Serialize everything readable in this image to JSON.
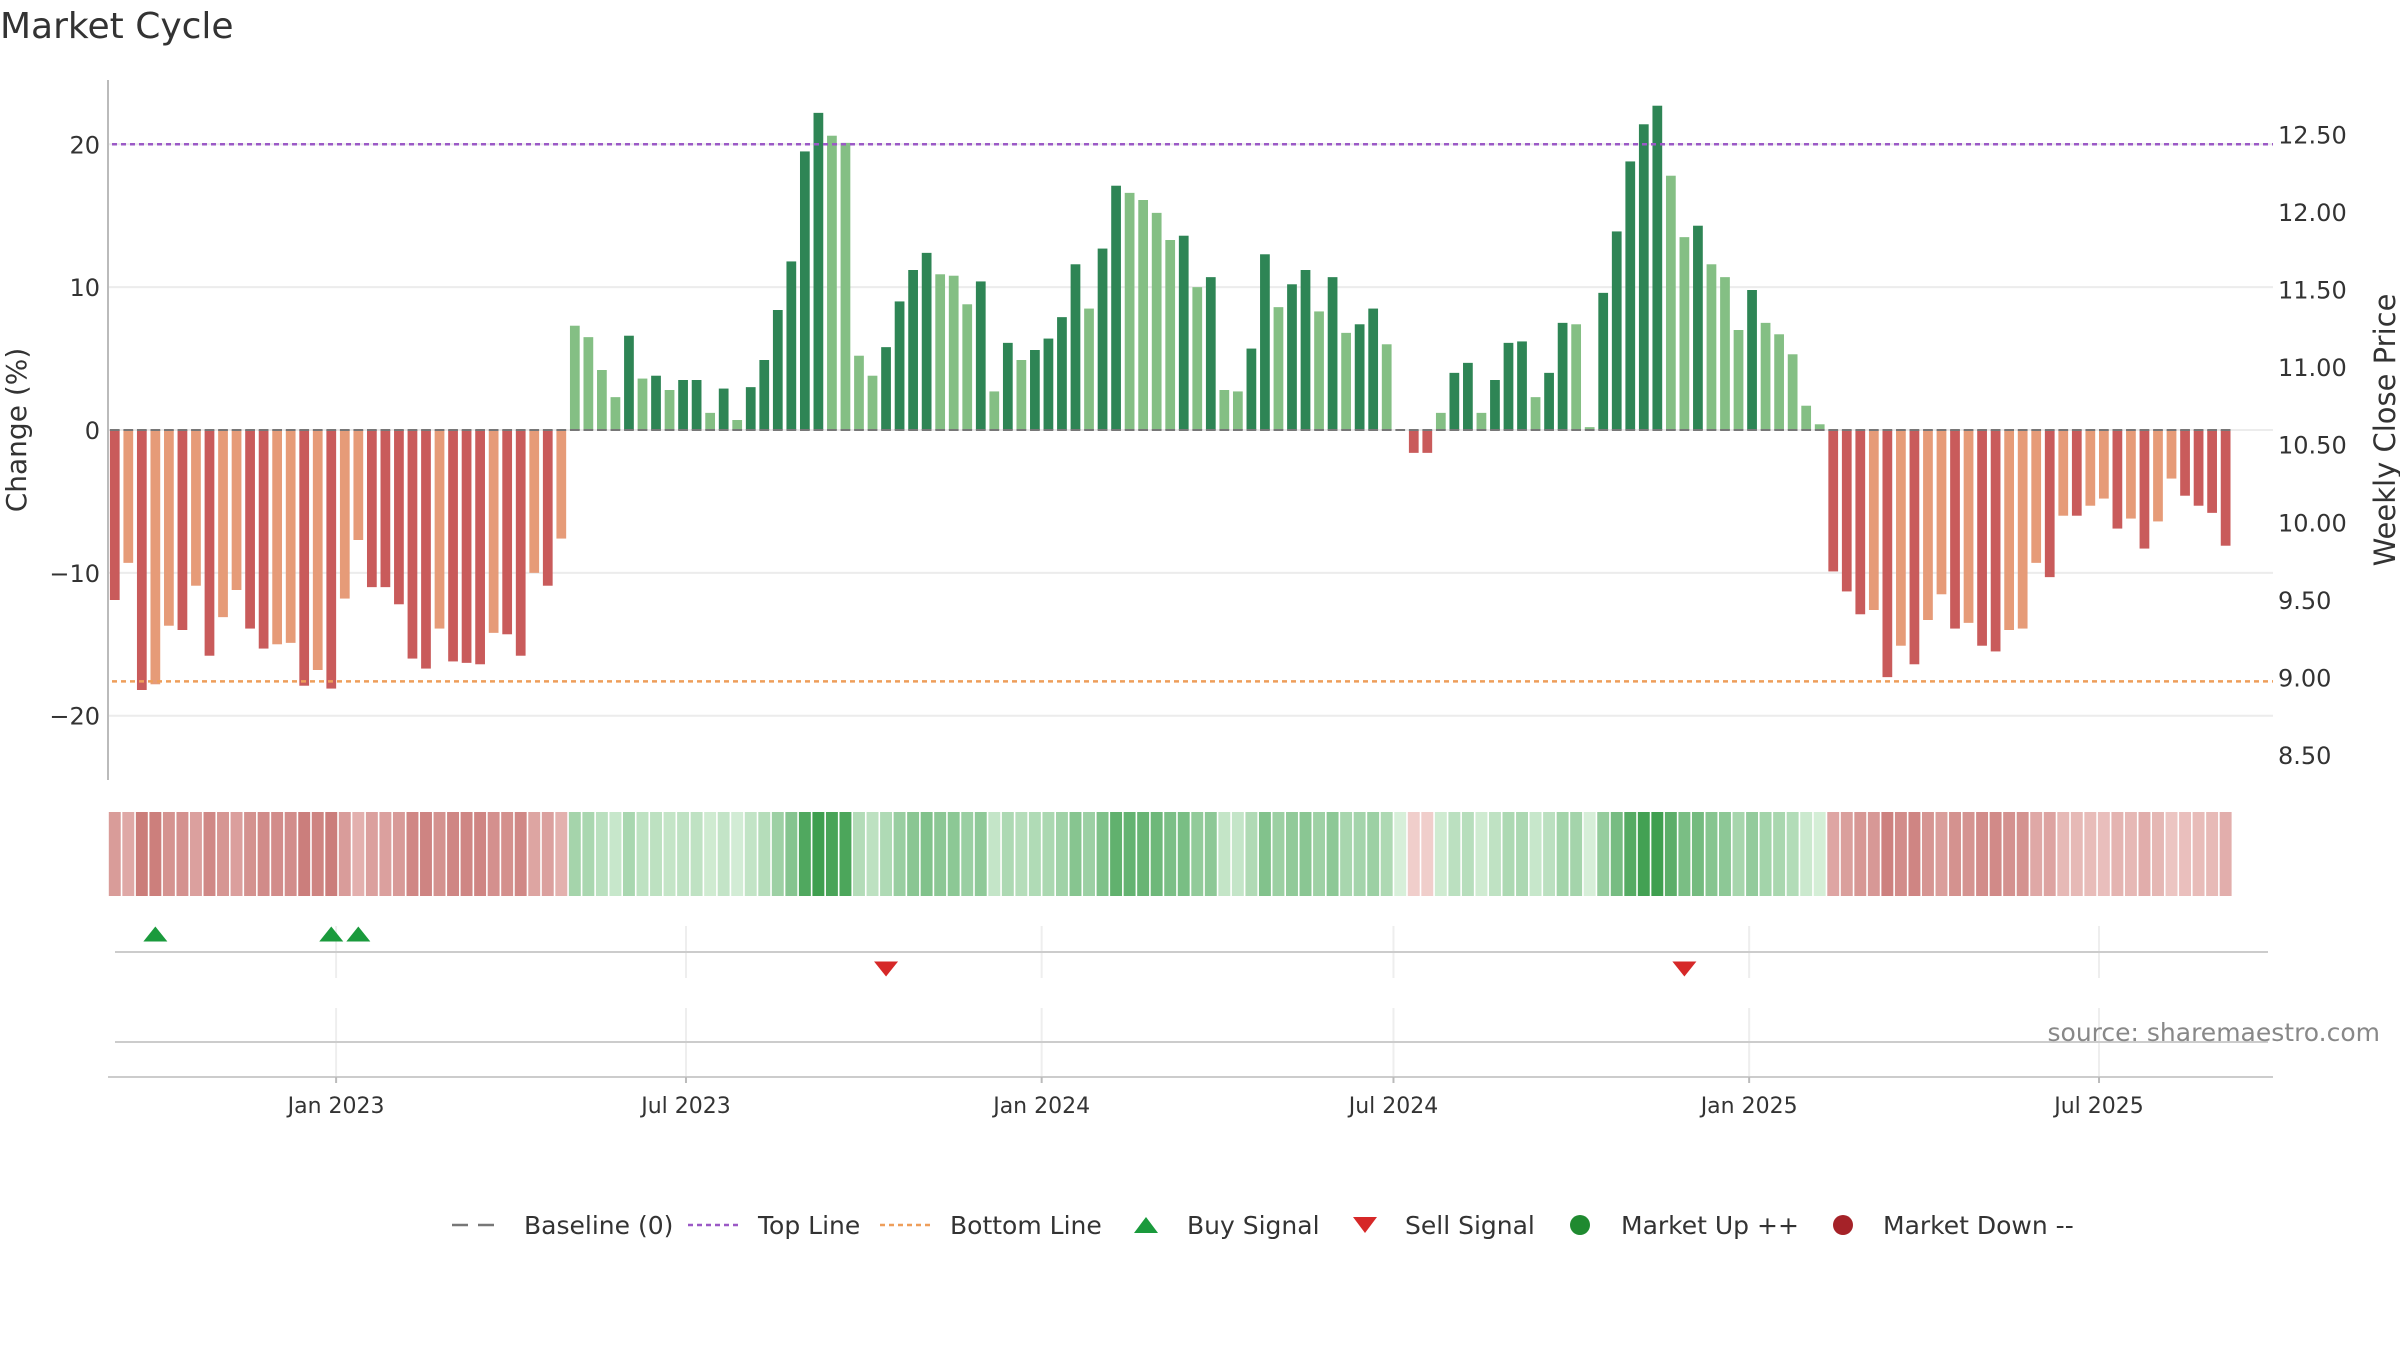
{
  "chart_data": {
    "type": "bar",
    "title": "Market Cycle",
    "ylabel": "Change (%)",
    "y2label": "Weekly Close Price",
    "ylim": [
      -24.5,
      24.5
    ],
    "y_ticks": [
      -20,
      -10,
      0,
      10,
      20
    ],
    "y_tick_labels": [
      "−20",
      "−10",
      "0",
      "10",
      "20"
    ],
    "y2lim": [
      8.34,
      12.85
    ],
    "y2_ticks": [
      8.5,
      9.0,
      9.5,
      10.0,
      10.5,
      11.0,
      11.5,
      12.0,
      12.5
    ],
    "y2_tick_labels": [
      "8.50",
      "9.00",
      "9.50",
      "10.00",
      "10.50",
      "11.00",
      "11.50",
      "12.00",
      "12.50"
    ],
    "x_start": "2022-09-05",
    "x_end": "2025-09-29",
    "x_ticks": [
      "2023-01-01",
      "2023-07-01",
      "2024-01-01",
      "2024-07-01",
      "2025-01-01",
      "2025-07-01"
    ],
    "x_tick_labels": [
      "Jan 2023",
      "Jul 2023",
      "Jan 2024",
      "Jul 2024",
      "Jan 2025",
      "Jul 2025"
    ],
    "grid": true,
    "top_line": 20,
    "bottom_line": -17.6,
    "values": [
      -11.9,
      -9.3,
      -18.2,
      -17.8,
      -13.7,
      -14,
      -10.9,
      -15.8,
      -13.1,
      -11.2,
      -13.9,
      -15.3,
      -15,
      -14.9,
      -17.9,
      -16.8,
      -18.1,
      -11.8,
      -7.7,
      -11,
      -11,
      -12.2,
      -16,
      -16.7,
      -13.9,
      -16.2,
      -16.3,
      -16.4,
      -14.2,
      -14.3,
      -15.8,
      -10,
      -10.9,
      -7.6,
      7.3,
      6.5,
      4.2,
      2.3,
      6.6,
      3.6,
      3.8,
      2.8,
      3.5,
      3.5,
      1.2,
      2.9,
      0.7,
      3,
      4.9,
      8.4,
      11.8,
      19.5,
      22.2,
      20.6,
      20.1,
      5.2,
      3.8,
      5.8,
      9,
      11.2,
      12.4,
      10.9,
      10.8,
      8.8,
      10.4,
      2.7,
      6.1,
      4.9,
      5.6,
      6.4,
      7.9,
      11.6,
      8.5,
      12.7,
      17.1,
      16.6,
      16.1,
      15.2,
      13.3,
      13.6,
      10,
      10.7,
      2.8,
      2.7,
      5.7,
      12.3,
      8.6,
      10.2,
      11.2,
      8.3,
      10.7,
      6.8,
      7.4,
      8.5,
      6,
      0,
      -1.6,
      -1.6,
      1.2,
      4,
      4.7,
      1.2,
      3.5,
      6.1,
      6.2,
      2.3,
      4,
      7.5,
      7.4,
      0.2,
      9.6,
      13.9,
      18.8,
      21.4,
      22.7,
      17.8,
      13.5,
      14.3,
      11.6,
      10.7,
      7,
      9.8,
      7.5,
      6.7,
      5.3,
      1.7,
      0.4,
      -9.9,
      -11.3,
      -12.9,
      -12.6,
      -17.3,
      -15.1,
      -16.4,
      -13.3,
      -11.5,
      -13.9,
      -13.5,
      -15.1,
      -15.5,
      -14,
      -13.9,
      -9.3,
      -10.3,
      -6,
      -6,
      -5.3,
      -4.8,
      -6.9,
      -6.2,
      -8.3,
      -6.4,
      -3.4,
      -4.6,
      -5.3,
      -5.8,
      -8.1
    ],
    "buy_signals": [
      "2022-09-26",
      "2022-12-26",
      "2023-01-09"
    ],
    "sell_signals": [
      "2023-10-09",
      "2024-11-25"
    ],
    "legend": [
      "Baseline (0)",
      "Top Line",
      "Bottom Line",
      "Buy Signal",
      "Sell Signal",
      "Market Up ++",
      "Market Down --"
    ],
    "legend_position": "bottom-center",
    "colors": {
      "strong_up": "#2e8555",
      "light_up": "#84bf84",
      "strong_down": "#c95b5b",
      "light_down": "#e69b78",
      "top_line": "#9b59c6",
      "bottom_line": "#ee9e5a",
      "buy": "#1a9a3c",
      "sell": "#d62828",
      "market_up": "#1f8a30",
      "market_down": "#a52228",
      "baseline": "#777777"
    }
  },
  "source": "source: sharemaestro.com"
}
